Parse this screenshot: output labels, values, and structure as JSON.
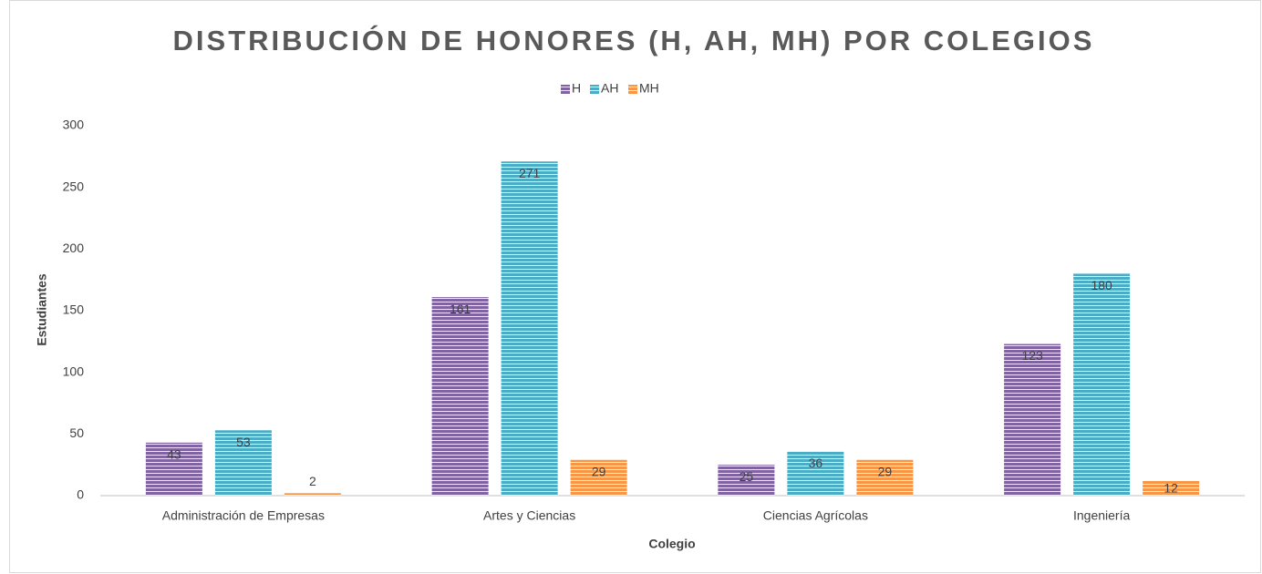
{
  "chart_data": {
    "type": "bar",
    "title": "DISTRIBUCIÓN DE HONORES (H, AH, MH) POR COLEGIOS",
    "x_label": "Colegio",
    "y_label": "Estudiantes",
    "categories": [
      "Administración de Empresas",
      "Artes y Ciencias",
      "Ciencias Agrícolas",
      "Ingeniería"
    ],
    "series": [
      {
        "name": "H",
        "color": "#8064a2",
        "values": [
          43,
          161,
          25,
          123
        ]
      },
      {
        "name": "AH",
        "color": "#4bacc6",
        "values": [
          53,
          271,
          36,
          180
        ]
      },
      {
        "name": "MH",
        "color": "#f79646",
        "values": [
          2,
          29,
          29,
          12
        ]
      }
    ],
    "ylim": [
      0,
      300
    ],
    "yticks": [
      0,
      50,
      100,
      150,
      200,
      250,
      300
    ],
    "grid": false,
    "legend": "top"
  }
}
